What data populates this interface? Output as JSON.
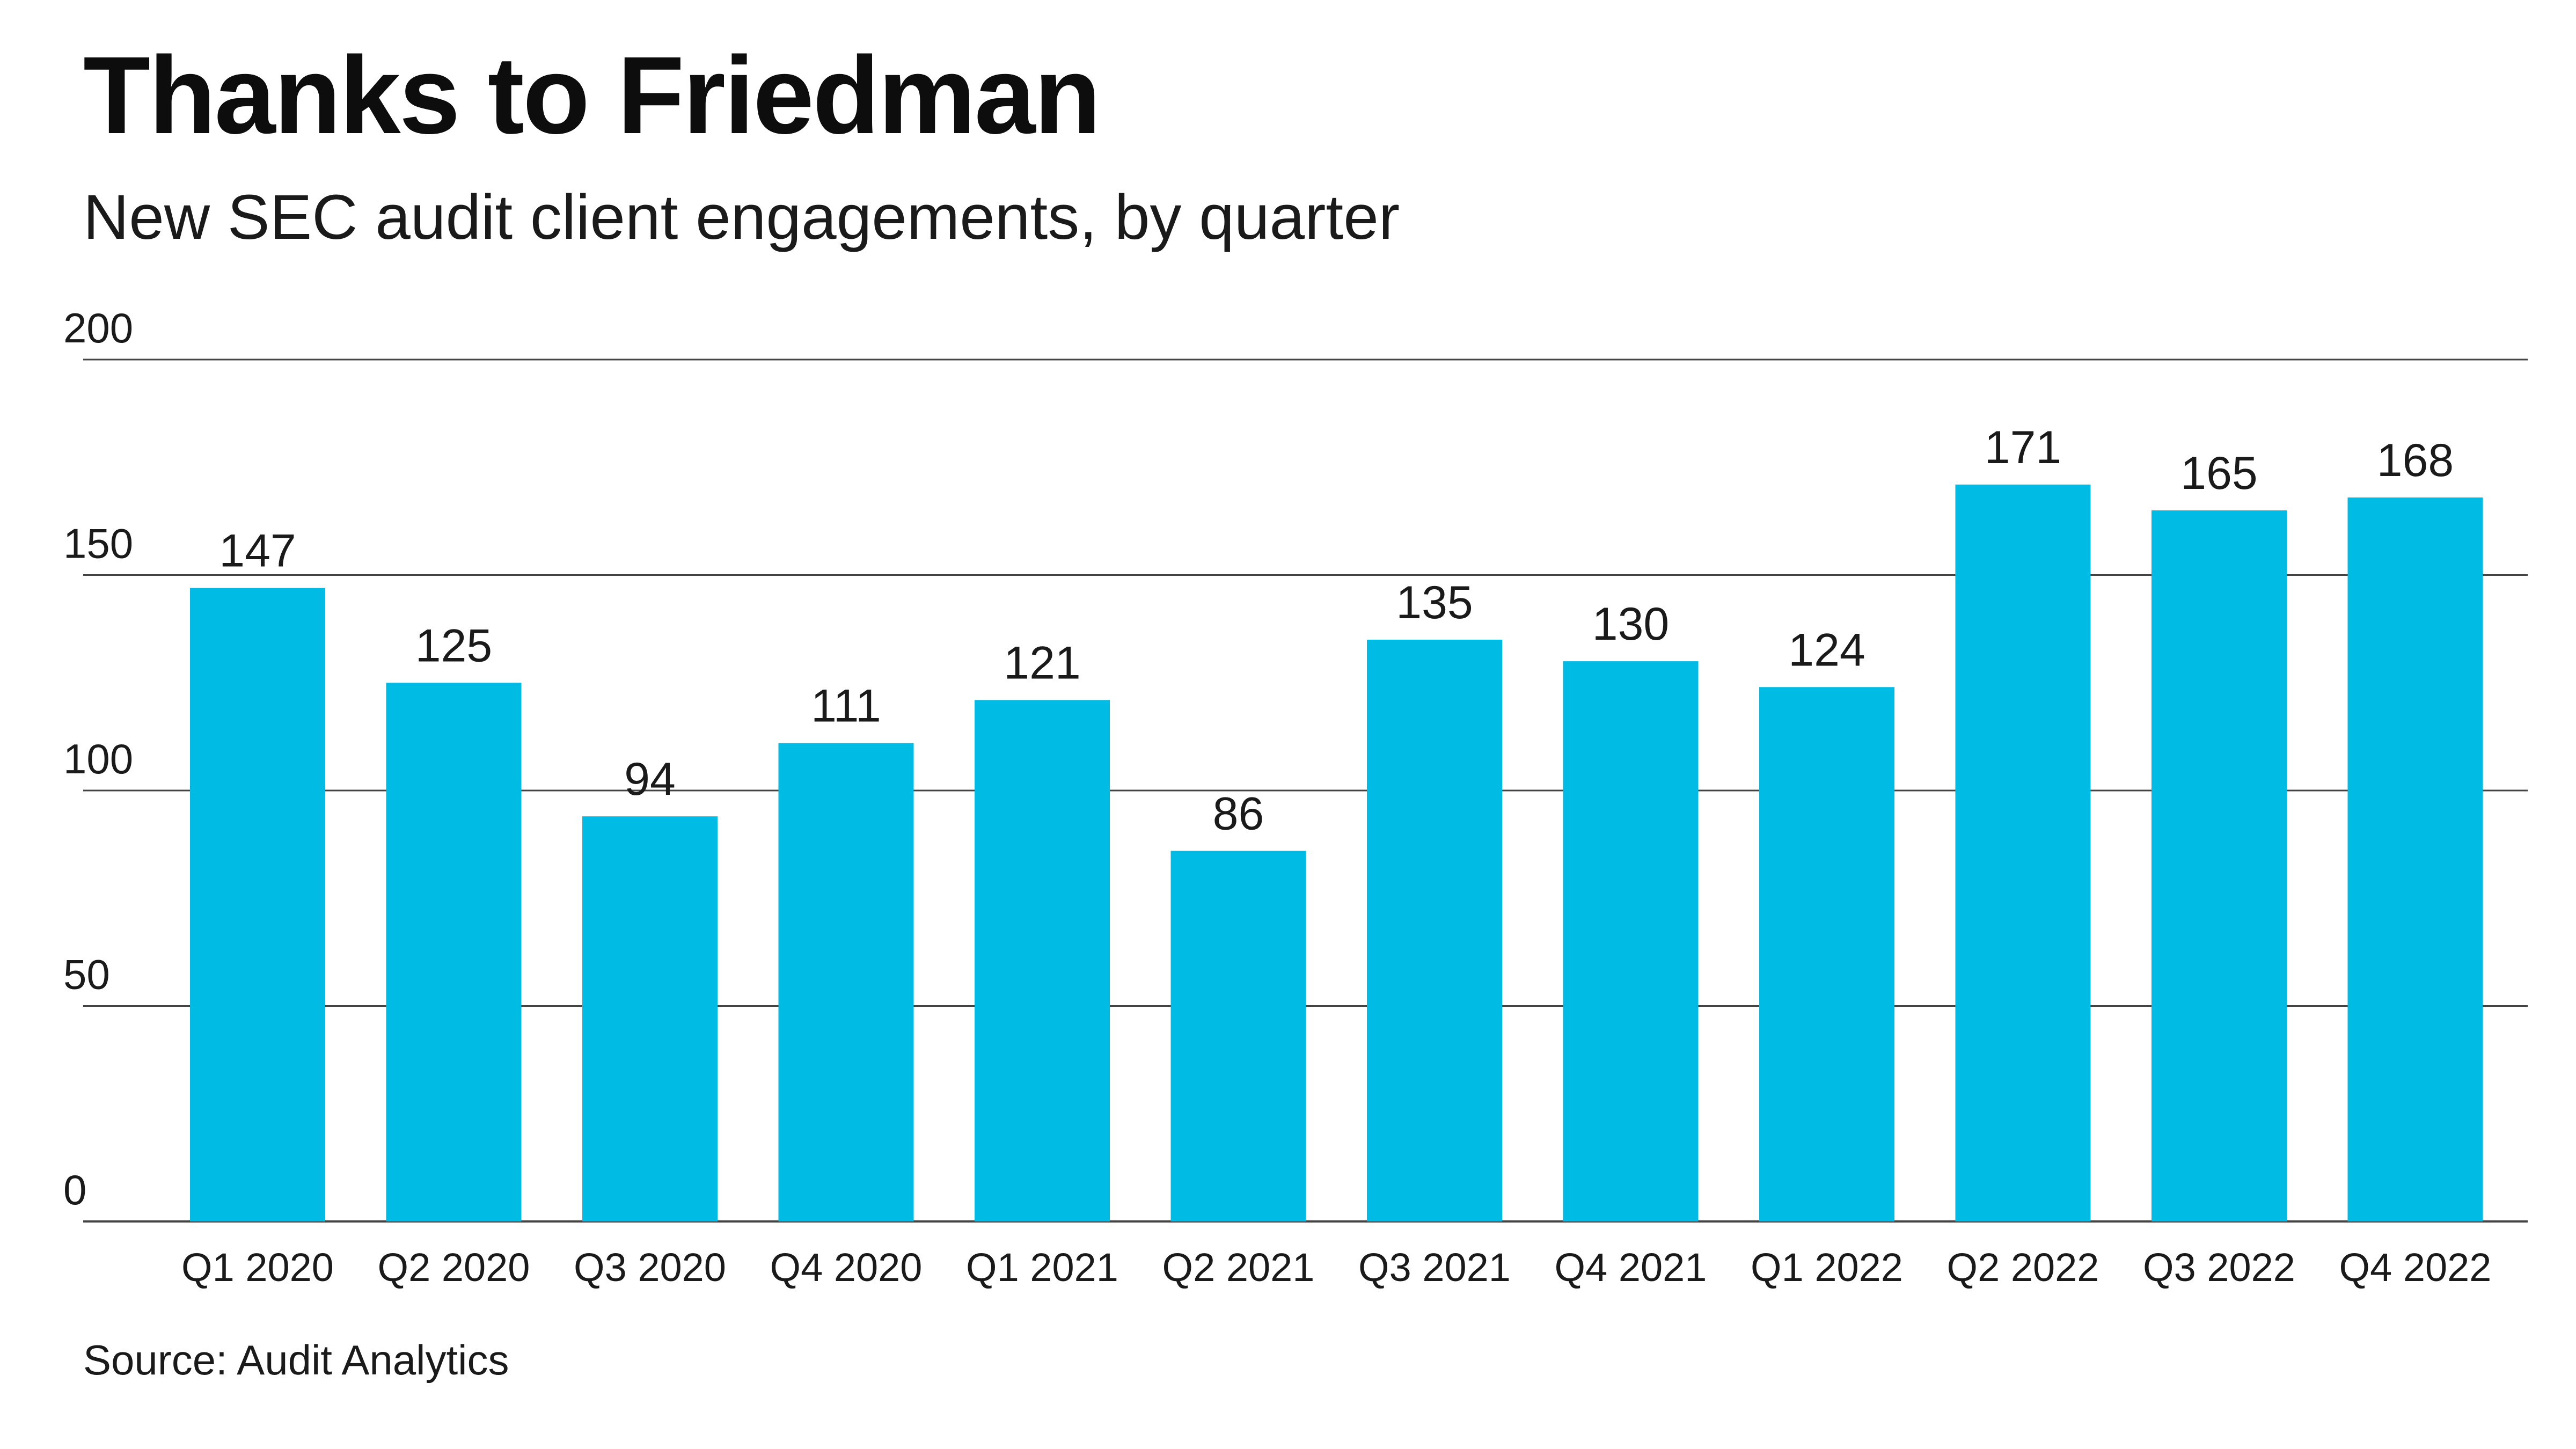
{
  "header": {
    "title": "Thanks to Friedman",
    "subtitle": "New SEC audit client engagements, by quarter"
  },
  "footer": {
    "source": "Source: Audit Analytics"
  },
  "colors": {
    "bar": "#00BBE3",
    "gridline": "#444444",
    "text": "#1a1a1a"
  },
  "chart_data": {
    "type": "bar",
    "categories": [
      "Q1 2020",
      "Q2 2020",
      "Q3 2020",
      "Q4 2020",
      "Q1 2021",
      "Q2 2021",
      "Q3 2021",
      "Q4 2021",
      "Q1 2022",
      "Q2 2022",
      "Q3 2022",
      "Q4 2022"
    ],
    "values": [
      147,
      125,
      94,
      111,
      121,
      86,
      135,
      130,
      124,
      171,
      165,
      168
    ],
    "ylim": [
      0,
      200
    ],
    "yticks": [
      0,
      50,
      100,
      150,
      200
    ],
    "grid": true,
    "data_labels": true,
    "legend": "none"
  }
}
